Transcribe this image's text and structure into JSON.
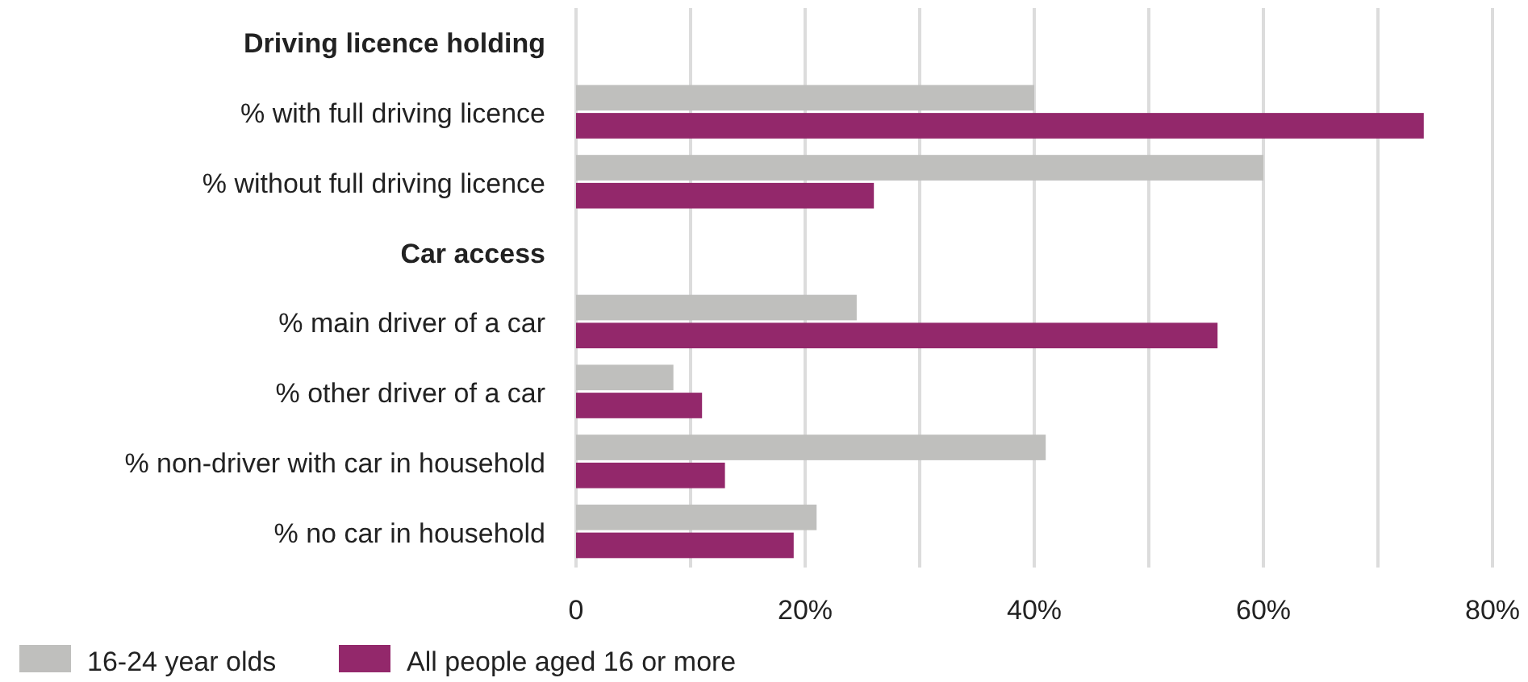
{
  "chart_data": {
    "type": "bar",
    "orientation": "horizontal",
    "categories": [
      "Driving licence holding",
      "% with full driving licence",
      "% without full driving licence",
      "Car access",
      "% main driver of a car",
      "% other driver of a car",
      "% non-driver with car in household",
      "% no car in household"
    ],
    "series": [
      {
        "name": "16-24 year olds",
        "color": "#bfbfbd",
        "values": [
          null,
          40,
          60,
          null,
          24.5,
          8.5,
          41,
          21
        ]
      },
      {
        "name": "All people aged 16 or more",
        "color": "#93286b",
        "values": [
          null,
          74,
          26,
          null,
          56,
          11,
          13,
          19
        ]
      }
    ],
    "xlim": [
      0,
      80
    ],
    "xticks": [
      0,
      {
        "value": 10,
        "label": null
      },
      {
        "value": 20,
        "label": "20%"
      },
      {
        "value": 30,
        "label": null
      },
      {
        "value": 40,
        "label": "40%"
      },
      {
        "value": 50,
        "label": null
      },
      {
        "value": 60,
        "label": "60%"
      },
      {
        "value": 70,
        "label": null
      },
      {
        "value": 80,
        "label": "80%"
      }
    ],
    "grid": "x",
    "legend": "bottom left"
  }
}
